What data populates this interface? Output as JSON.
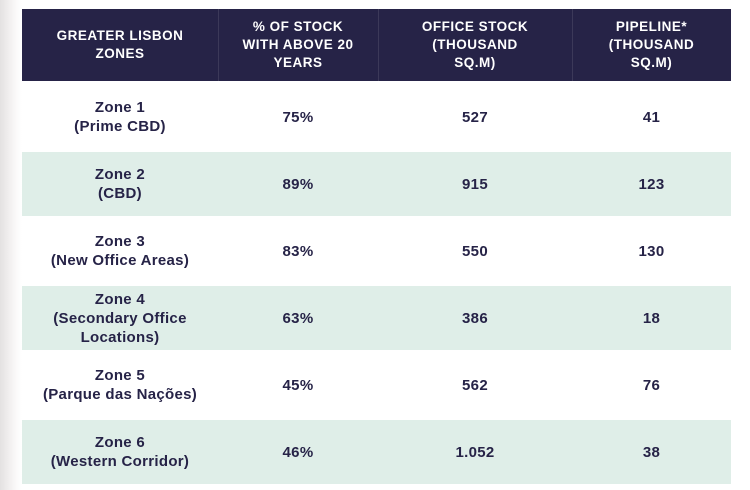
{
  "colors": {
    "header_background": "#262347",
    "header_text": "#ffffff",
    "alt_row_background": "#dfeee8",
    "row_background": "#ffffff",
    "body_text": "#262347"
  },
  "table": {
    "columns": [
      {
        "lines": [
          "GREATER LISBON",
          "ZONES"
        ]
      },
      {
        "lines": [
          "% OF STOCK",
          "WITH ABOVE 20",
          "YEARS"
        ]
      },
      {
        "lines": [
          "OFFICE STOCK",
          "(THOUSAND",
          "SQ.M)"
        ]
      },
      {
        "lines": [
          "PIPELINE*",
          "(THOUSAND",
          "SQ.M)"
        ]
      }
    ],
    "rows": [
      {
        "zone_lines": [
          "Zone 1",
          "(Prime CBD)"
        ],
        "pct_above_20y": "75%",
        "office_stock": "527",
        "pipeline": "41"
      },
      {
        "zone_lines": [
          "Zone 2",
          "(CBD)"
        ],
        "pct_above_20y": "89%",
        "office_stock": "915",
        "pipeline": "123"
      },
      {
        "zone_lines": [
          "Zone 3",
          "(New Office Areas)"
        ],
        "pct_above_20y": "83%",
        "office_stock": "550",
        "pipeline": "130"
      },
      {
        "zone_lines": [
          "Zone 4",
          "(Secondary Office",
          "Locations)"
        ],
        "pct_above_20y": "63%",
        "office_stock": "386",
        "pipeline": "18"
      },
      {
        "zone_lines": [
          "Zone 5",
          "(Parque das Nações)"
        ],
        "pct_above_20y": "45%",
        "office_stock": "562",
        "pipeline": "76"
      },
      {
        "zone_lines": [
          "Zone 6",
          "(Western Corridor)"
        ],
        "pct_above_20y": "46%",
        "office_stock": "1.052",
        "pipeline": "38"
      }
    ]
  },
  "chart_data": {
    "type": "table",
    "title": "",
    "columns": [
      "GREATER LISBON ZONES",
      "% OF STOCK WITH ABOVE 20 YEARS",
      "OFFICE STOCK (THOUSAND SQ.M)",
      "PIPELINE* (THOUSAND SQ.M)"
    ],
    "rows": [
      [
        "Zone 1 (Prime CBD)",
        "75%",
        "527",
        "41"
      ],
      [
        "Zone 2 (CBD)",
        "89%",
        "915",
        "123"
      ],
      [
        "Zone 3 (New Office Areas)",
        "83%",
        "550",
        "130"
      ],
      [
        "Zone 4 (Secondary Office Locations)",
        "63%",
        "386",
        "18"
      ],
      [
        "Zone 5 (Parque das Nações)",
        "45%",
        "562",
        "76"
      ],
      [
        "Zone 6 (Western Corridor)",
        "46%",
        "1.052",
        "38"
      ]
    ]
  }
}
